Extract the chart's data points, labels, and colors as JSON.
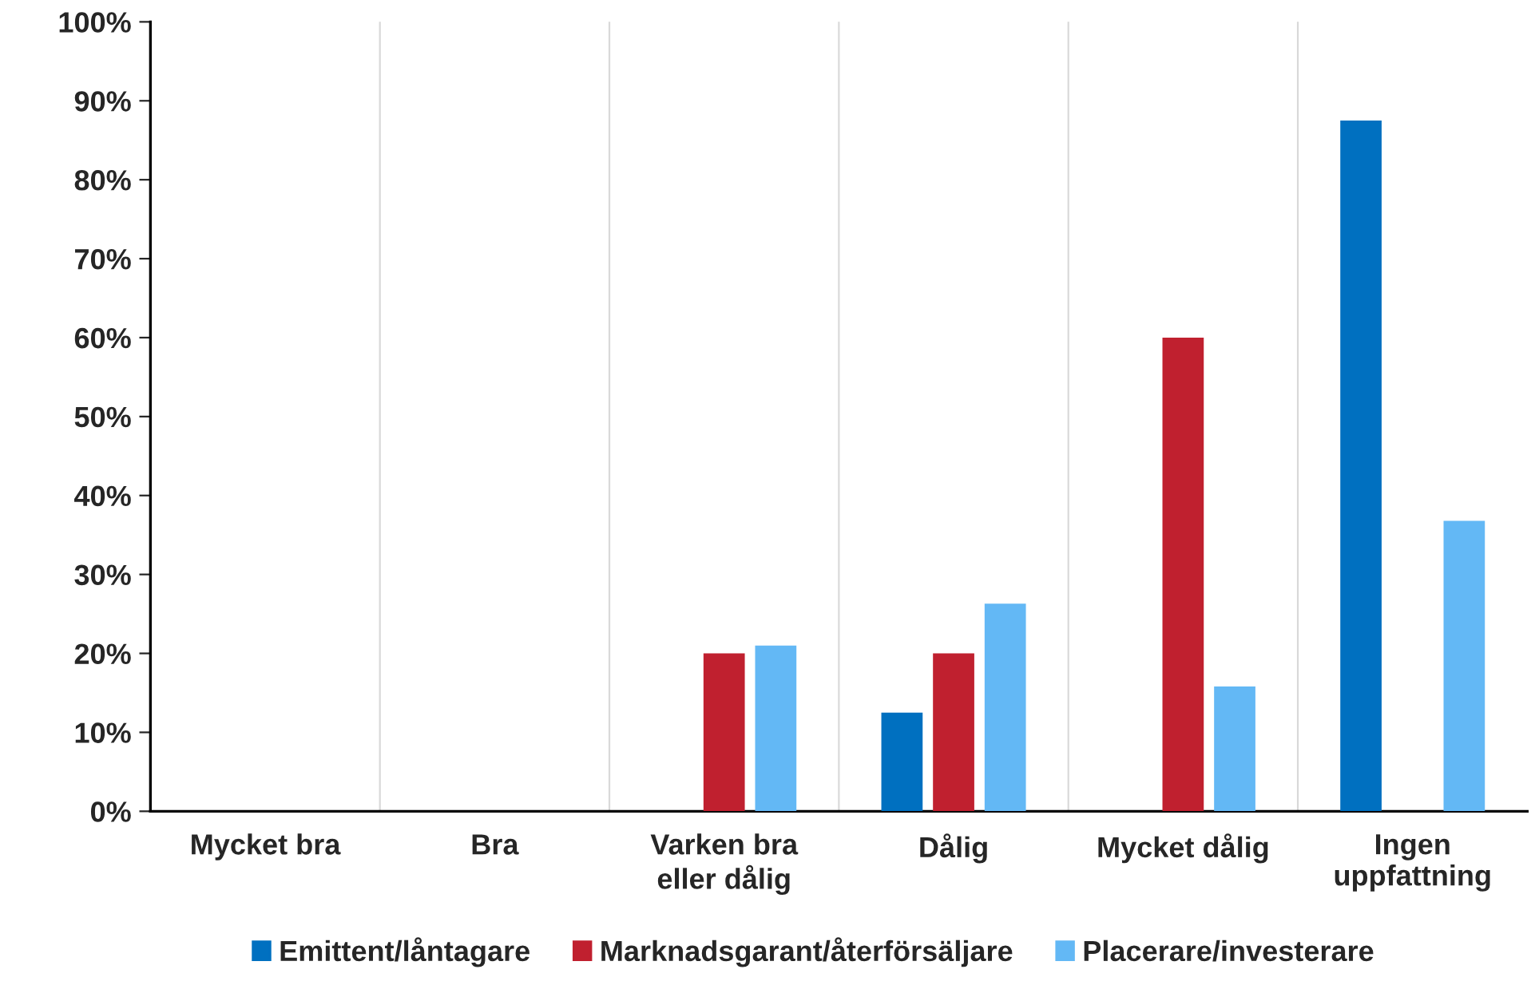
{
  "chart_data": {
    "type": "bar",
    "categories": [
      "Mycket bra",
      "Bra",
      "Varken bra\neller dålig",
      "Dålig",
      "Mycket dålig",
      "Ingen\nuppfattning"
    ],
    "series": [
      {
        "name": "Emittent/låntagare",
        "color": "#0070c0",
        "values": [
          0,
          0,
          0,
          12.5,
          0,
          87.5
        ]
      },
      {
        "name": "Marknadsgarant/återförsäljare",
        "color": "#c0202f",
        "values": [
          0,
          0,
          20,
          20,
          60,
          0
        ]
      },
      {
        "name": "Placerare/investerare",
        "color": "#63b8f5",
        "values": [
          0,
          0,
          21,
          26.3,
          15.8,
          36.8
        ]
      }
    ],
    "ylim": [
      0,
      100
    ],
    "yticks": [
      {
        "value": 0,
        "label": "0%"
      },
      {
        "value": 10,
        "label": "10%"
      },
      {
        "value": 20,
        "label": "20%"
      },
      {
        "value": 30,
        "label": "30%"
      },
      {
        "value": 40,
        "label": "40%"
      },
      {
        "value": 50,
        "label": "50%"
      },
      {
        "value": 60,
        "label": "60%"
      },
      {
        "value": 70,
        "label": "70%"
      },
      {
        "value": 80,
        "label": "80%"
      },
      {
        "value": 90,
        "label": "90%"
      },
      {
        "value": 100,
        "label": "100%"
      }
    ],
    "grid": "x",
    "legend": "bottom"
  }
}
